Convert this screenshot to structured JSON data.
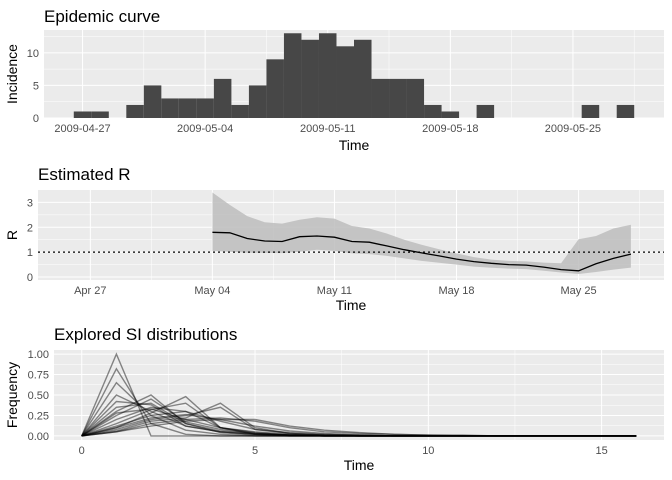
{
  "colors": {
    "panel_bg": "#ebebeb",
    "grid_major": "#ffffff",
    "bar_fill": "#474747",
    "ribbon": "#bdbdbd",
    "line": "#000000"
  },
  "chart_data": [
    {
      "type": "bar",
      "title": "Epidemic curve",
      "xlabel": "Time",
      "ylabel": "Incidence",
      "x_ticks": [
        "2009-04-27",
        "2009-05-04",
        "2009-05-11",
        "2009-05-18",
        "2009-05-25"
      ],
      "y_ticks": [
        "0",
        "5",
        "10"
      ],
      "ylim": [
        0,
        13.5
      ],
      "grid": true,
      "dates": [
        "2009-04-27",
        "2009-04-28",
        "2009-04-29",
        "2009-04-30",
        "2009-05-01",
        "2009-05-02",
        "2009-05-03",
        "2009-05-04",
        "2009-05-05",
        "2009-05-06",
        "2009-05-07",
        "2009-05-08",
        "2009-05-09",
        "2009-05-10",
        "2009-05-11",
        "2009-05-12",
        "2009-05-13",
        "2009-05-14",
        "2009-05-15",
        "2009-05-16",
        "2009-05-17",
        "2009-05-18",
        "2009-05-19",
        "2009-05-20",
        "2009-05-21",
        "2009-05-22",
        "2009-05-23",
        "2009-05-24",
        "2009-05-25",
        "2009-05-26",
        "2009-05-27",
        "2009-05-28"
      ],
      "values": [
        1,
        1,
        0,
        2,
        5,
        3,
        3,
        3,
        6,
        2,
        5,
        9,
        13,
        12,
        13,
        11,
        12,
        6,
        6,
        6,
        2,
        1,
        0,
        2,
        0,
        0,
        0,
        0,
        0,
        2,
        0,
        2
      ]
    },
    {
      "type": "line",
      "title": "Estimated R",
      "xlabel": "Time",
      "ylabel": "R",
      "x_ticks": [
        "Apr 27",
        "May 04",
        "May 11",
        "May 18",
        "May 25"
      ],
      "y_ticks": [
        "0",
        "1",
        "2",
        "3"
      ],
      "ylim": [
        -0.12,
        3.5
      ],
      "reference_line": 1,
      "grid": true,
      "series": [
        {
          "dates": [
            "2009-05-04",
            "2009-05-05",
            "2009-05-06",
            "2009-05-07",
            "2009-05-08",
            "2009-05-09",
            "2009-05-10",
            "2009-05-11",
            "2009-05-12",
            "2009-05-13",
            "2009-05-14",
            "2009-05-15",
            "2009-05-16",
            "2009-05-17",
            "2009-05-18",
            "2009-05-19",
            "2009-05-20",
            "2009-05-21",
            "2009-05-22",
            "2009-05-23",
            "2009-05-24",
            "2009-05-25",
            "2009-05-26",
            "2009-05-27",
            "2009-05-28"
          ],
          "mean": [
            1.8,
            1.78,
            1.55,
            1.45,
            1.43,
            1.62,
            1.65,
            1.6,
            1.43,
            1.4,
            1.25,
            1.1,
            0.97,
            0.85,
            0.72,
            0.62,
            0.55,
            0.5,
            0.48,
            0.4,
            0.3,
            0.25,
            0.53,
            0.75,
            0.92
          ],
          "upper": [
            3.4,
            2.9,
            2.45,
            2.2,
            2.15,
            2.3,
            2.4,
            2.35,
            2.05,
            1.95,
            1.75,
            1.5,
            1.3,
            1.12,
            0.95,
            0.8,
            0.7,
            0.65,
            0.63,
            0.58,
            0.55,
            1.52,
            1.65,
            1.95,
            2.1
          ],
          "lower": [
            1.05,
            1.02,
            0.98,
            0.97,
            0.96,
            1.02,
            1.1,
            1.05,
            0.95,
            0.92,
            0.85,
            0.75,
            0.65,
            0.57,
            0.5,
            0.42,
            0.37,
            0.34,
            0.32,
            0.25,
            0.18,
            0.12,
            0.2,
            0.3,
            0.38
          ]
        }
      ]
    },
    {
      "type": "line",
      "title": "Explored SI distributions",
      "xlabel": "Time",
      "ylabel": "Frequency",
      "x_ticks": [
        "0",
        "5",
        "10",
        "15"
      ],
      "y_ticks": [
        "0.00",
        "0.25",
        "0.50",
        "0.75",
        "1.00"
      ],
      "xlim": [
        -0.8,
        16.8
      ],
      "ylim": [
        -0.05,
        1.05
      ],
      "grid": true,
      "series": [
        {
          "x": [
            0,
            1,
            2,
            3,
            4,
            5,
            6,
            7,
            8,
            9,
            10,
            11,
            12,
            13,
            14,
            15,
            16
          ],
          "values": [
            0,
            1.0,
            0.0,
            0,
            0,
            0,
            0,
            0,
            0,
            0,
            0,
            0,
            0,
            0,
            0,
            0,
            0
          ]
        },
        {
          "x": [
            0,
            1,
            2,
            3,
            4,
            5,
            6,
            7,
            8,
            9,
            10,
            11,
            12,
            13,
            14,
            15,
            16
          ],
          "values": [
            0,
            0.82,
            0.15,
            0.02,
            0,
            0,
            0,
            0,
            0,
            0,
            0,
            0,
            0,
            0,
            0,
            0,
            0
          ]
        },
        {
          "x": [
            0,
            1,
            2,
            3,
            4,
            5,
            6,
            7,
            8,
            9,
            10,
            11,
            12,
            13,
            14,
            15,
            16
          ],
          "values": [
            0,
            0.65,
            0.25,
            0.07,
            0.02,
            0,
            0,
            0,
            0,
            0,
            0,
            0,
            0,
            0,
            0,
            0,
            0
          ]
        },
        {
          "x": [
            0,
            1,
            2,
            3,
            4,
            5,
            6,
            7,
            8,
            9,
            10,
            11,
            12,
            13,
            14,
            15,
            16
          ],
          "values": [
            0,
            0.5,
            0.3,
            0.12,
            0.05,
            0.02,
            0,
            0,
            0,
            0,
            0,
            0,
            0,
            0,
            0,
            0,
            0
          ]
        },
        {
          "x": [
            0,
            1,
            2,
            3,
            4,
            5,
            6,
            7,
            8,
            9,
            10,
            11,
            12,
            13,
            14,
            15,
            16
          ],
          "values": [
            0,
            0.42,
            0.38,
            0.12,
            0.05,
            0.02,
            0.01,
            0,
            0,
            0,
            0,
            0,
            0,
            0,
            0,
            0,
            0
          ]
        },
        {
          "x": [
            0,
            1,
            2,
            3,
            4,
            5,
            6,
            7,
            8,
            9,
            10,
            11,
            12,
            13,
            14,
            15,
            16
          ],
          "values": [
            0,
            0.35,
            0.4,
            0.15,
            0.06,
            0.03,
            0.01,
            0,
            0,
            0,
            0,
            0,
            0,
            0,
            0,
            0,
            0
          ]
        },
        {
          "x": [
            0,
            1,
            2,
            3,
            4,
            5,
            6,
            7,
            8,
            9,
            10,
            11,
            12,
            13,
            14,
            15,
            16
          ],
          "values": [
            0,
            0.25,
            0.45,
            0.17,
            0.08,
            0.03,
            0.01,
            0.01,
            0,
            0,
            0,
            0,
            0,
            0,
            0,
            0,
            0
          ]
        },
        {
          "x": [
            0,
            1,
            2,
            3,
            4,
            5,
            6,
            7,
            8,
            9,
            10,
            11,
            12,
            13,
            14,
            15,
            16
          ],
          "values": [
            0,
            0.2,
            0.35,
            0.3,
            0.1,
            0.04,
            0.01,
            0,
            0,
            0,
            0,
            0,
            0,
            0,
            0,
            0,
            0
          ]
        },
        {
          "x": [
            0,
            1,
            2,
            3,
            4,
            5,
            6,
            7,
            8,
            9,
            10,
            11,
            12,
            13,
            14,
            15,
            16
          ],
          "values": [
            0,
            0.15,
            0.32,
            0.4,
            0.1,
            0.02,
            0.01,
            0,
            0,
            0,
            0,
            0,
            0,
            0,
            0,
            0,
            0
          ]
        },
        {
          "x": [
            0,
            1,
            2,
            3,
            4,
            5,
            6,
            7,
            8,
            9,
            10,
            11,
            12,
            13,
            14,
            15,
            16
          ],
          "values": [
            0,
            0.1,
            0.28,
            0.48,
            0.1,
            0.03,
            0.01,
            0,
            0,
            0,
            0,
            0,
            0,
            0,
            0,
            0,
            0
          ]
        },
        {
          "x": [
            0,
            1,
            2,
            3,
            4,
            5,
            6,
            7,
            8,
            9,
            10,
            11,
            12,
            13,
            14,
            15,
            16
          ],
          "values": [
            0,
            0.12,
            0.25,
            0.3,
            0.18,
            0.08,
            0.04,
            0.02,
            0.01,
            0,
            0,
            0,
            0,
            0,
            0,
            0,
            0
          ]
        },
        {
          "x": [
            0,
            1,
            2,
            3,
            4,
            5,
            6,
            7,
            8,
            9,
            10,
            11,
            12,
            13,
            14,
            15,
            16
          ],
          "values": [
            0,
            0.08,
            0.2,
            0.25,
            0.35,
            0.08,
            0.03,
            0.01,
            0,
            0,
            0,
            0,
            0,
            0,
            0,
            0,
            0
          ]
        },
        {
          "x": [
            0,
            1,
            2,
            3,
            4,
            5,
            6,
            7,
            8,
            9,
            10,
            11,
            12,
            13,
            14,
            15,
            16
          ],
          "values": [
            0,
            0.06,
            0.18,
            0.22,
            0.4,
            0.1,
            0.03,
            0.01,
            0,
            0,
            0,
            0,
            0,
            0,
            0,
            0,
            0
          ]
        },
        {
          "x": [
            0,
            1,
            2,
            3,
            4,
            5,
            6,
            7,
            8,
            9,
            10,
            11,
            12,
            13,
            14,
            15,
            16
          ],
          "values": [
            0,
            0.1,
            0.22,
            0.26,
            0.2,
            0.12,
            0.06,
            0.03,
            0.01,
            0,
            0,
            0,
            0,
            0,
            0,
            0,
            0
          ]
        },
        {
          "x": [
            0,
            1,
            2,
            3,
            4,
            5,
            6,
            7,
            8,
            9,
            10,
            11,
            12,
            13,
            14,
            15,
            16
          ],
          "values": [
            0,
            0.05,
            0.15,
            0.2,
            0.22,
            0.18,
            0.1,
            0.05,
            0.03,
            0.02,
            0.01,
            0,
            0,
            0,
            0,
            0,
            0
          ]
        },
        {
          "x": [
            0,
            1,
            2,
            3,
            4,
            5,
            6,
            7,
            8,
            9,
            10,
            11,
            12,
            13,
            14,
            15,
            16
          ],
          "values": [
            0,
            0.05,
            0.12,
            0.18,
            0.2,
            0.2,
            0.12,
            0.07,
            0.04,
            0.02,
            0.01,
            0.01,
            0,
            0,
            0,
            0,
            0
          ]
        },
        {
          "x": [
            0,
            1,
            2,
            3,
            4,
            5,
            6,
            7,
            8,
            9,
            10,
            11,
            12,
            13,
            14,
            15,
            16
          ],
          "values": [
            0,
            0.3,
            0.5,
            0.15,
            0.04,
            0.01,
            0,
            0,
            0,
            0,
            0,
            0,
            0,
            0,
            0,
            0,
            0
          ]
        },
        {
          "x": [
            0,
            1,
            2,
            3,
            4,
            5,
            6,
            7,
            8,
            9,
            10,
            11,
            12,
            13,
            14,
            15,
            16
          ],
          "values": [
            0,
            0.28,
            0.33,
            0.2,
            0.1,
            0.05,
            0.02,
            0.01,
            0.01,
            0,
            0,
            0,
            0,
            0,
            0,
            0,
            0
          ]
        }
      ]
    }
  ]
}
